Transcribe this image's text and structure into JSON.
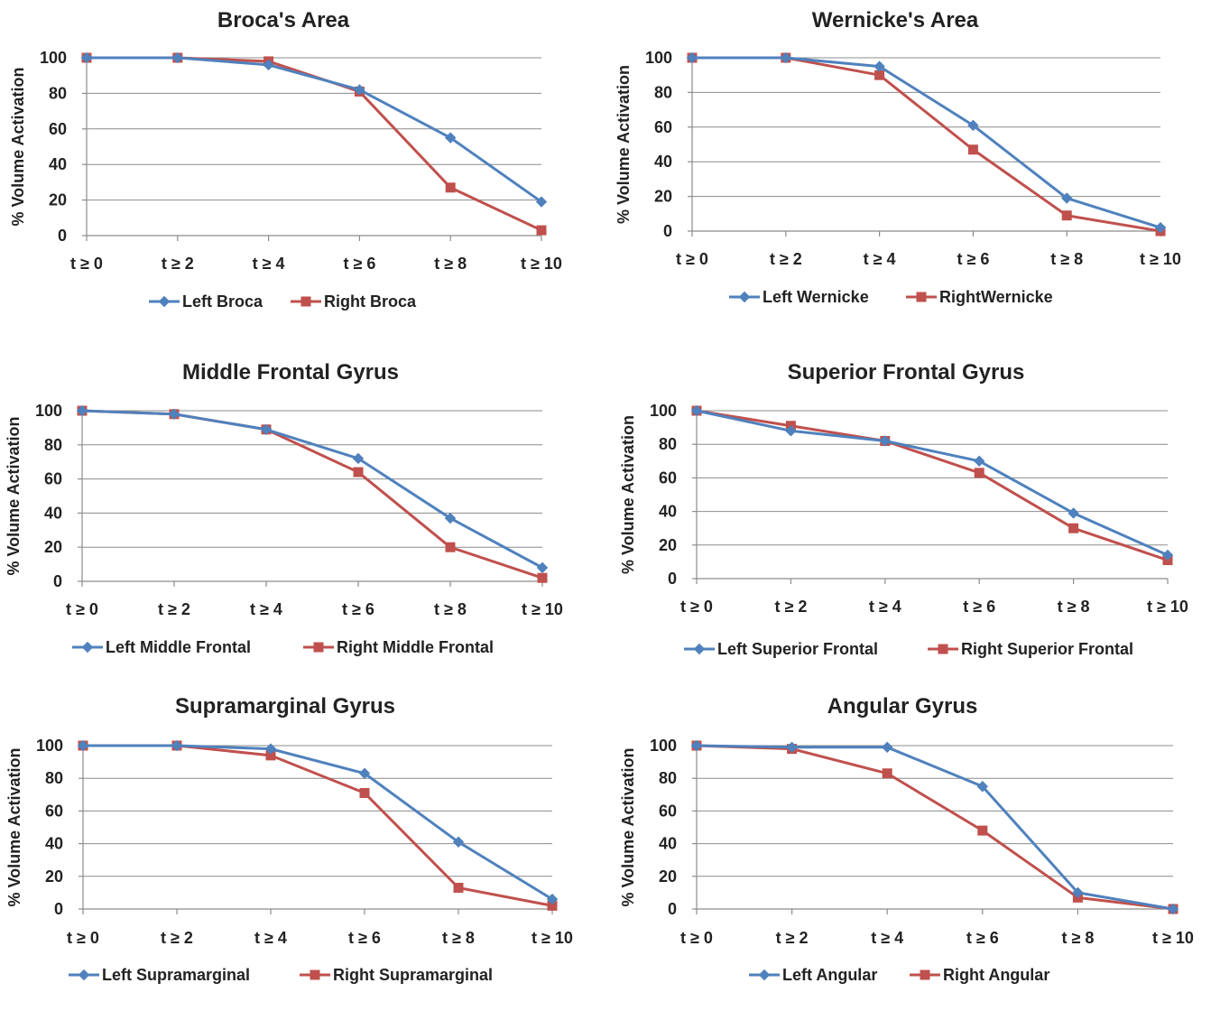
{
  "colors": {
    "left": "#4f81bd",
    "right": "#c0504d"
  },
  "chart_data": [
    {
      "type": "line",
      "title": "Broca's Area",
      "ylabel": "% Volume Activation",
      "xlabel": "",
      "categories": [
        "t ≥ 0",
        "t ≥ 2",
        "t ≥ 4",
        "t ≥ 6",
        "t ≥ 8",
        "t ≥ 10"
      ],
      "ylim": [
        0,
        100
      ],
      "yticks": [
        "0",
        "20",
        "40",
        "60",
        "80",
        "100"
      ],
      "grid": true,
      "legend": "bottom",
      "series": [
        {
          "name": "Left Broca",
          "marker": "diamond",
          "values": [
            100,
            100,
            96,
            82,
            55,
            19
          ]
        },
        {
          "name": "Right Broca",
          "marker": "square",
          "values": [
            100,
            100,
            98,
            81,
            27,
            3
          ]
        }
      ]
    },
    {
      "type": "line",
      "title": "Wernicke's Area",
      "ylabel": "% Volume Activation",
      "xlabel": "",
      "categories": [
        "t ≥ 0",
        "t ≥ 2",
        "t ≥ 4",
        "t ≥ 6",
        "t ≥ 8",
        "t ≥ 10"
      ],
      "ylim": [
        0,
        100
      ],
      "yticks": [
        "0",
        "20",
        "40",
        "60",
        "80",
        "100"
      ],
      "grid": true,
      "legend": "bottom",
      "series": [
        {
          "name": "Left Wernicke",
          "marker": "diamond",
          "values": [
            100,
            100,
            95,
            61,
            19,
            2
          ]
        },
        {
          "name": "RightWernicke",
          "marker": "square",
          "values": [
            100,
            100,
            90,
            47,
            9,
            0
          ]
        }
      ]
    },
    {
      "type": "line",
      "title": "Middle Frontal Gyrus",
      "ylabel": "% Volume Activation",
      "xlabel": "",
      "categories": [
        "t ≥ 0",
        "t ≥ 2",
        "t ≥ 4",
        "t ≥ 6",
        "t ≥ 8",
        "t ≥ 10"
      ],
      "ylim": [
        0,
        100
      ],
      "yticks": [
        "0",
        "20",
        "40",
        "60",
        "80",
        "100"
      ],
      "grid": true,
      "legend": "bottom",
      "series": [
        {
          "name": "Left Middle Frontal",
          "marker": "diamond",
          "values": [
            100,
            98,
            89,
            72,
            37,
            8
          ]
        },
        {
          "name": "Right Middle Frontal",
          "marker": "square",
          "values": [
            100,
            98,
            89,
            64,
            20,
            2
          ]
        }
      ]
    },
    {
      "type": "line",
      "title": "Superior Frontal Gyrus",
      "ylabel": "% Volume Activation",
      "xlabel": "",
      "categories": [
        "t ≥ 0",
        "t ≥ 2",
        "t ≥ 4",
        "t ≥ 6",
        "t ≥ 8",
        "t ≥ 10"
      ],
      "ylim": [
        0,
        100
      ],
      "yticks": [
        "0",
        "20",
        "40",
        "60",
        "80",
        "100"
      ],
      "grid": true,
      "legend": "bottom",
      "series": [
        {
          "name": "Left Superior Frontal",
          "marker": "diamond",
          "values": [
            100,
            88,
            82,
            70,
            39,
            14
          ]
        },
        {
          "name": "Right Superior Frontal",
          "marker": "square",
          "values": [
            100,
            91,
            82,
            63,
            30,
            11
          ]
        }
      ]
    },
    {
      "type": "line",
      "title": "Supramarginal Gyrus",
      "ylabel": "% Volume Activation",
      "xlabel": "",
      "categories": [
        "t ≥ 0",
        "t ≥ 2",
        "t ≥ 4",
        "t ≥ 6",
        "t ≥ 8",
        "t ≥ 10"
      ],
      "ylim": [
        0,
        100
      ],
      "yticks": [
        "0",
        "20",
        "40",
        "60",
        "80",
        "100"
      ],
      "grid": true,
      "legend": "bottom",
      "series": [
        {
          "name": "Left Supramarginal",
          "marker": "diamond",
          "values": [
            100,
            100,
            98,
            83,
            41,
            6
          ]
        },
        {
          "name": "Right Supramarginal",
          "marker": "square",
          "values": [
            100,
            100,
            94,
            71,
            13,
            2
          ]
        }
      ]
    },
    {
      "type": "line",
      "title": "Angular Gyrus",
      "ylabel": "% Volume  Activation",
      "xlabel": "",
      "categories": [
        "t ≥ 0",
        "t ≥ 2",
        "t ≥ 4",
        "t ≥ 6",
        "t ≥ 8",
        "t ≥ 10"
      ],
      "ylim": [
        0,
        100
      ],
      "yticks": [
        "0",
        "20",
        "40",
        "60",
        "80",
        "100"
      ],
      "grid": true,
      "legend": "bottom",
      "series": [
        {
          "name": "Left Angular",
          "marker": "diamond",
          "values": [
            100,
            99,
            99,
            75,
            10,
            0
          ]
        },
        {
          "name": "Right Angular",
          "marker": "square",
          "values": [
            100,
            98,
            83,
            48,
            7,
            0
          ]
        }
      ]
    }
  ]
}
